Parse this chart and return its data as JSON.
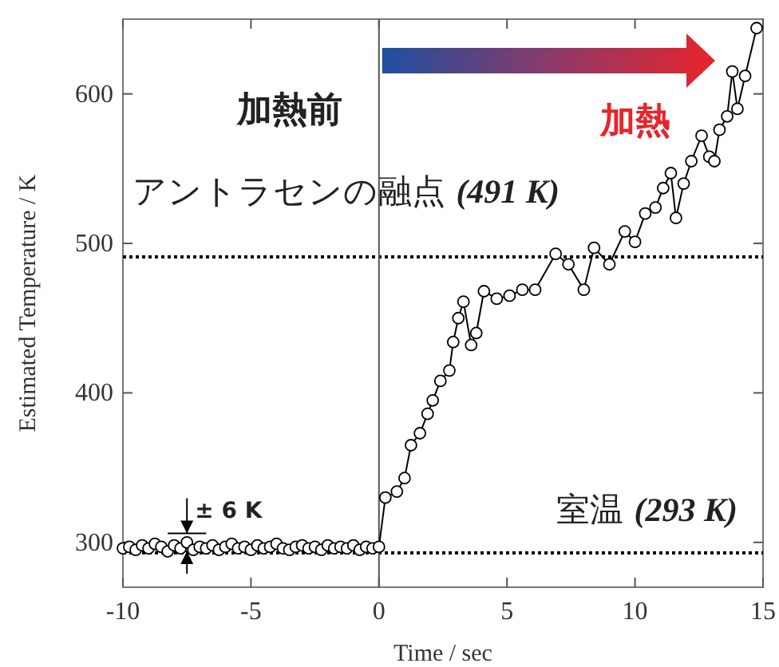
{
  "chart_data": {
    "type": "line",
    "xlabel": "Time / sec",
    "ylabel": "Estimated Temperature / K",
    "xlim": [
      -10,
      15
    ],
    "ylim": [
      270,
      650
    ],
    "xticks": [
      -10,
      -5,
      0,
      5,
      10,
      15
    ],
    "yticks": [
      300,
      400,
      500,
      600
    ],
    "grid": false,
    "marker": "circle",
    "line_style": "solid",
    "series": [
      {
        "color": "#000000",
        "x": [
          -10,
          -9.75,
          -9.5,
          -9.25,
          -9,
          -8.75,
          -8.5,
          -8.25,
          -8,
          -7.75,
          -7.5,
          -7.25,
          -7,
          -6.75,
          -6.5,
          -6.25,
          -6,
          -5.75,
          -5.5,
          -5.25,
          -5,
          -4.75,
          -4.5,
          -4.25,
          -4,
          -3.75,
          -3.5,
          -3.25,
          -3,
          -2.75,
          -2.5,
          -2.25,
          -2,
          -1.75,
          -1.5,
          -1.25,
          -1,
          -0.75,
          -0.5,
          -0.25,
          0,
          0.25,
          0.7,
          1.0,
          1.25,
          1.6,
          1.9,
          2.1,
          2.4,
          2.75,
          2.9,
          3.1,
          3.3,
          3.6,
          3.8,
          4.1,
          4.6,
          5.1,
          5.6,
          6.1,
          6.9,
          7.4,
          8.0,
          8.4,
          9.0,
          9.6,
          10.0,
          10.4,
          10.8,
          11.1,
          11.4,
          11.6,
          11.9,
          12.2,
          12.6,
          12.9,
          13.1,
          13.3,
          13.6,
          13.8,
          14.0,
          14.3,
          14.75
        ],
        "values": [
          296,
          297,
          295,
          298,
          296,
          299,
          297,
          294,
          298,
          296,
          300,
          295,
          297,
          296,
          298,
          295,
          297,
          299,
          296,
          297,
          295,
          298,
          296,
          297,
          299,
          296,
          295,
          297,
          298,
          296,
          297,
          295,
          298,
          296,
          297,
          296,
          298,
          295,
          297,
          296,
          297,
          330,
          334,
          343,
          365,
          373,
          386,
          395,
          408,
          415,
          434,
          450,
          461,
          432,
          440,
          468,
          463,
          465,
          469,
          469,
          493,
          486,
          469,
          497,
          486,
          508,
          501,
          520,
          524,
          537,
          547,
          517,
          540,
          555,
          572,
          558,
          555,
          576,
          585,
          615,
          590,
          612,
          644
        ]
      }
    ],
    "ref_lines": [
      {
        "axis": "y",
        "value": 491,
        "label": "アントラセンの融点 *(491 K)*",
        "line_style": "dotted",
        "color": "#000000"
      },
      {
        "axis": "y",
        "value": 293,
        "label": "室温 *(293 K)*",
        "line_style": "dotted",
        "color": "#000000"
      },
      {
        "axis": "x",
        "value": 0,
        "line_style": "solid",
        "color": "#555555"
      }
    ],
    "annotations": [
      "加熱前",
      "加熱",
      {
        "text": "± 6 K",
        "x": -7.5,
        "y": 300
      }
    ]
  }
}
